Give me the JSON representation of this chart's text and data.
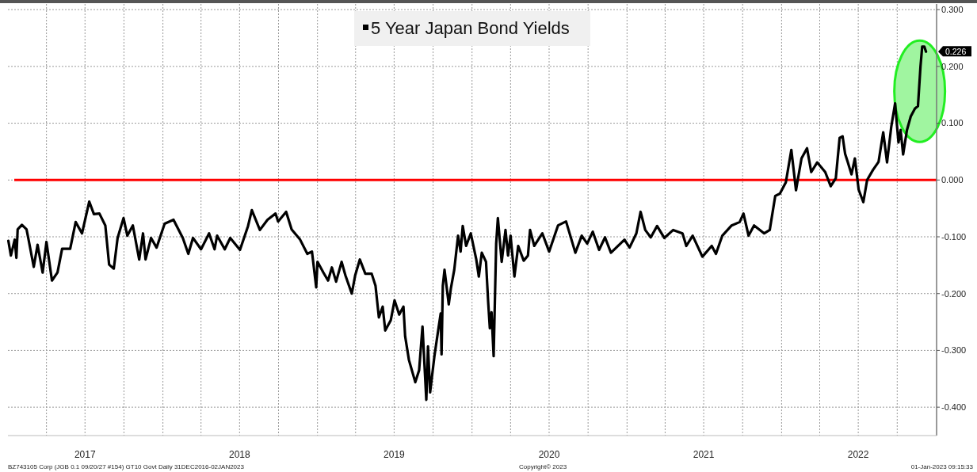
{
  "chart_data": {
    "type": "line",
    "legend": "top",
    "grid": true,
    "line_style": "solid",
    "xlim": [
      "2016-12-31",
      "2023-01-02"
    ],
    "ylim": [
      -0.45,
      0.31
    ],
    "xticks": [
      {
        "value": "2017-04-01",
        "label": null
      },
      {
        "value": "2017-07-01",
        "label": "2017"
      },
      {
        "value": "2017-10-01",
        "label": null
      },
      {
        "value": "2018-01-01",
        "label": null
      },
      {
        "value": "2018-04-01",
        "label": null
      },
      {
        "value": "2018-07-01",
        "label": "2018"
      },
      {
        "value": "2018-10-01",
        "label": null
      },
      {
        "value": "2019-01-01",
        "label": null
      },
      {
        "value": "2019-04-01",
        "label": null
      },
      {
        "value": "2019-07-01",
        "label": "2019"
      },
      {
        "value": "2019-10-01",
        "label": null
      },
      {
        "value": "2020-01-01",
        "label": null
      },
      {
        "value": "2020-04-01",
        "label": null
      },
      {
        "value": "2020-07-01",
        "label": "2020"
      },
      {
        "value": "2020-10-01",
        "label": null
      },
      {
        "value": "2021-01-01",
        "label": null
      },
      {
        "value": "2021-04-01",
        "label": null
      },
      {
        "value": "2021-07-01",
        "label": "2021"
      },
      {
        "value": "2021-10-01",
        "label": null
      },
      {
        "value": "2022-01-01",
        "label": null
      },
      {
        "value": "2022-04-01",
        "label": null
      },
      {
        "value": "2022-07-01",
        "label": "2022"
      },
      {
        "value": "2022-10-01",
        "label": null
      }
    ],
    "yticks": [
      {
        "value": -0.4,
        "label": "-0.400"
      },
      {
        "value": -0.3,
        "label": "-0.300"
      },
      {
        "value": -0.2,
        "label": "-0.200"
      },
      {
        "value": -0.1,
        "label": "-0.100"
      },
      {
        "value": 0,
        "label": "0.000"
      },
      {
        "value": 0.1,
        "label": "0.100"
      },
      {
        "value": 0.2,
        "label": "0.200"
      },
      {
        "value": 0.3,
        "label": "0.300"
      }
    ],
    "ref_lines": [
      {
        "axis": "y",
        "value": 0,
        "color": "#ff0000"
      }
    ],
    "annotations": [
      {
        "text": "0.226",
        "y": 0.226
      },
      "BZ743105 Corp (JGB 0.1 09/20/27 #154) GT10  Govt  Daily 31DEC2016-02JAN2023",
      "Copyright© 2023",
      "01-Jan-2023 09:15:33"
    ],
    "x": [
      "2017-01-01",
      "2017-01-07",
      "2017-01-16",
      "2017-01-20",
      "2017-01-23",
      "2017-02-02",
      "2017-02-13",
      "2017-02-17",
      "2017-03-02",
      "2017-03-11",
      "2017-03-23",
      "2017-04-01",
      "2017-04-14",
      "2017-04-27",
      "2017-05-08",
      "2017-05-27",
      "2017-06-09",
      "2017-06-24",
      "2017-07-11",
      "2017-07-22",
      "2017-08-04",
      "2017-08-18",
      "2017-08-27",
      "2017-09-07",
      "2017-09-16",
      "2017-09-30",
      "2017-10-09",
      "2017-10-22",
      "2017-11-06",
      "2017-11-15",
      "2017-11-21",
      "2017-12-04",
      "2017-12-17",
      "2018-01-05",
      "2018-01-26",
      "2018-02-17",
      "2018-03-02",
      "2018-03-13",
      "2018-04-01",
      "2018-04-20",
      "2018-05-03",
      "2018-05-09",
      "2018-05-27",
      "2018-06-09",
      "2018-07-02",
      "2018-07-21",
      "2018-07-30",
      "2018-08-18",
      "2018-09-05",
      "2018-09-24",
      "2018-09-30",
      "2018-10-19",
      "2018-11-01",
      "2018-11-21",
      "2018-12-08",
      "2018-12-19",
      "2018-12-29",
      "2019-01-01",
      "2019-01-15",
      "2019-01-26",
      "2019-02-04",
      "2019-02-14",
      "2019-02-27",
      "2019-03-08",
      "2019-03-23",
      "2019-03-31",
      "2019-04-11",
      "2019-04-24",
      "2019-05-09",
      "2019-05-18",
      "2019-05-26",
      "2019-06-04",
      "2019-06-10",
      "2019-06-23",
      "2019-07-02",
      "2019-07-13",
      "2019-07-23",
      "2019-07-27",
      "2019-08-05",
      "2019-08-20",
      "2019-08-29",
      "2019-09-06",
      "2019-09-15",
      "2019-09-19",
      "2019-09-24",
      "2019-10-04",
      "2019-10-13",
      "2019-10-19",
      "2019-10-21",
      "2019-10-24",
      "2019-10-28",
      "2019-11-07",
      "2019-11-12",
      "2019-11-20",
      "2019-11-29",
      "2019-12-05",
      "2019-12-10",
      "2019-12-18",
      "2019-12-29",
      "2020-01-11",
      "2020-01-17",
      "2020-01-24",
      "2020-02-03",
      "2020-02-08",
      "2020-02-12",
      "2020-02-16",
      "2020-02-21",
      "2020-02-27",
      "2020-03-02",
      "2020-03-11",
      "2020-03-20",
      "2020-03-26",
      "2020-04-01",
      "2020-04-10",
      "2020-04-19",
      "2020-05-02",
      "2020-05-12",
      "2020-05-17",
      "2020-05-27",
      "2020-06-15",
      "2020-07-01",
      "2020-07-22",
      "2020-08-10",
      "2020-09-01",
      "2020-09-16",
      "2020-09-29",
      "2020-10-12",
      "2020-10-27",
      "2020-11-10",
      "2020-11-24",
      "2020-12-26",
      "2021-01-07",
      "2021-01-23",
      "2021-02-02",
      "2021-02-13",
      "2021-02-26",
      "2021-03-13",
      "2021-03-30",
      "2021-04-20",
      "2021-05-12",
      "2021-05-21",
      "2021-06-05",
      "2021-06-28",
      "2021-07-20",
      "2021-07-30",
      "2021-08-14",
      "2021-09-05",
      "2021-09-24",
      "2021-10-03",
      "2021-10-15",
      "2021-10-28",
      "2021-11-21",
      "2021-12-04",
      "2021-12-17",
      "2021-12-28",
      "2022-01-11",
      "2022-01-24",
      "2022-02-04",
      "2022-02-17",
      "2022-03-02",
      "2022-03-12",
      "2022-03-26",
      "2022-04-14",
      "2022-04-27",
      "2022-05-09",
      "2022-05-18",
      "2022-05-25",
      "2022-05-31",
      "2022-06-06",
      "2022-06-15",
      "2022-06-23",
      "2022-07-02",
      "2022-07-13",
      "2022-07-22",
      "2022-08-05",
      "2022-08-18",
      "2022-08-29",
      "2022-09-07",
      "2022-09-17",
      "2022-09-26",
      "2022-10-04",
      "2022-10-09",
      "2022-10-15",
      "2022-10-24",
      "2022-11-02",
      "2022-11-12",
      "2022-11-19",
      "2022-11-25",
      "2022-11-29",
      "2022-12-04",
      "2022-12-08"
    ],
    "series": [
      {
        "name": "5 Year Japan Bond Yields",
        "color": "#000000",
        "values": [
          -0.107,
          -0.133,
          -0.105,
          -0.137,
          -0.087,
          -0.079,
          -0.087,
          -0.102,
          -0.153,
          -0.114,
          -0.163,
          -0.109,
          -0.177,
          -0.163,
          -0.121,
          -0.121,
          -0.074,
          -0.094,
          -0.038,
          -0.06,
          -0.059,
          -0.08,
          -0.149,
          -0.156,
          -0.102,
          -0.067,
          -0.098,
          -0.08,
          -0.14,
          -0.094,
          -0.14,
          -0.102,
          -0.119,
          -0.077,
          -0.07,
          -0.102,
          -0.13,
          -0.102,
          -0.122,
          -0.094,
          -0.122,
          -0.098,
          -0.122,
          -0.102,
          -0.123,
          -0.081,
          -0.053,
          -0.088,
          -0.07,
          -0.059,
          -0.073,
          -0.056,
          -0.087,
          -0.105,
          -0.13,
          -0.126,
          -0.189,
          -0.144,
          -0.163,
          -0.177,
          -0.154,
          -0.179,
          -0.144,
          -0.168,
          -0.2,
          -0.168,
          -0.14,
          -0.165,
          -0.165,
          -0.186,
          -0.242,
          -0.223,
          -0.265,
          -0.247,
          -0.212,
          -0.237,
          -0.223,
          -0.275,
          -0.317,
          -0.356,
          -0.335,
          -0.258,
          -0.387,
          -0.293,
          -0.374,
          -0.311,
          -0.265,
          -0.235,
          -0.307,
          -0.186,
          -0.158,
          -0.219,
          -0.191,
          -0.158,
          -0.098,
          -0.126,
          -0.081,
          -0.116,
          -0.094,
          -0.14,
          -0.17,
          -0.128,
          -0.144,
          -0.214,
          -0.261,
          -0.233,
          -0.31,
          -0.112,
          -0.067,
          -0.144,
          -0.088,
          -0.133,
          -0.098,
          -0.17,
          -0.116,
          -0.142,
          -0.133,
          -0.088,
          -0.116,
          -0.094,
          -0.126,
          -0.08,
          -0.073,
          -0.128,
          -0.098,
          -0.112,
          -0.091,
          -0.123,
          -0.101,
          -0.128,
          -0.105,
          -0.119,
          -0.094,
          -0.056,
          -0.088,
          -0.101,
          -0.081,
          -0.102,
          -0.088,
          -0.094,
          -0.116,
          -0.098,
          -0.135,
          -0.116,
          -0.13,
          -0.098,
          -0.08,
          -0.074,
          -0.059,
          -0.098,
          -0.08,
          -0.094,
          -0.088,
          -0.028,
          -0.024,
          -0.004,
          0.053,
          -0.018,
          0.038,
          0.056,
          0.014,
          0.031,
          0.014,
          -0.011,
          0.003,
          0.074,
          0.077,
          0.046,
          0.032,
          0.01,
          0.038,
          -0.017,
          -0.039,
          0.0,
          0.018,
          0.032,
          0.084,
          0.031,
          0.094,
          0.135,
          0.066,
          0.088,
          0.045,
          0.088,
          0.112,
          0.126,
          0.13,
          0.2,
          0.235,
          0.235,
          0.226
        ]
      }
    ]
  }
}
